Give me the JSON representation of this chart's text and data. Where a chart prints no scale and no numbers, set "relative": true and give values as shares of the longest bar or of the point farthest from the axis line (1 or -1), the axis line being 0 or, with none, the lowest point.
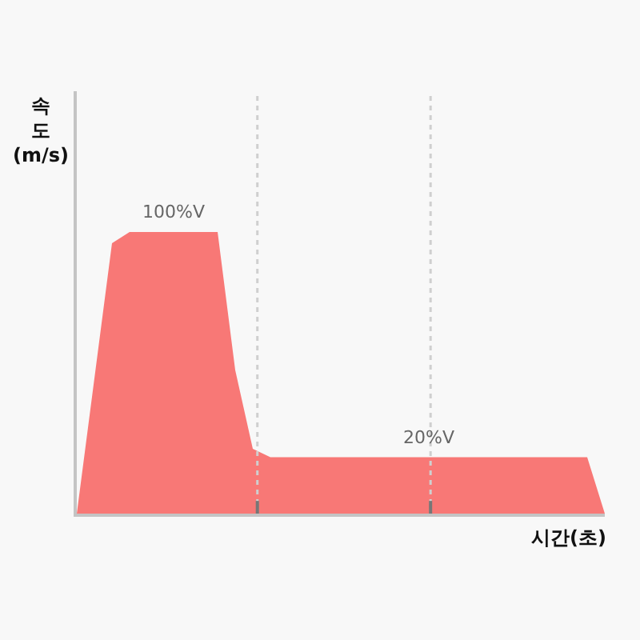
{
  "chart_data": {
    "type": "area",
    "relative": true,
    "ylabel": "속도 (m/s)",
    "xlabel": "시간(초)",
    "categories": [
      null,
      null,
      null,
      null,
      null,
      null,
      null,
      null,
      null,
      null,
      null,
      null,
      null,
      null,
      null,
      null,
      null,
      null,
      null,
      null,
      null,
      null,
      null,
      null,
      null,
      null,
      null,
      null,
      null,
      null,
      null
    ],
    "series": [
      {
        "color": "#f87876",
        "values": [
          0,
          0.48,
          0.96,
          1,
          1,
          1,
          1,
          1,
          1,
          0.51,
          0.23,
          0.2,
          0.2,
          0.2,
          0.2,
          0.2,
          0.2,
          0.2,
          0.2,
          0.2,
          0.2,
          0.2,
          0.2,
          0.2,
          0.2,
          0.2,
          0.2,
          0.2,
          0.2,
          0.2,
          0
        ]
      }
    ],
    "annotations": [
      {
        "text": "100%V",
        "y": 1
      },
      {
        "text": "20%V",
        "y": 0.2
      }
    ]
  }
}
